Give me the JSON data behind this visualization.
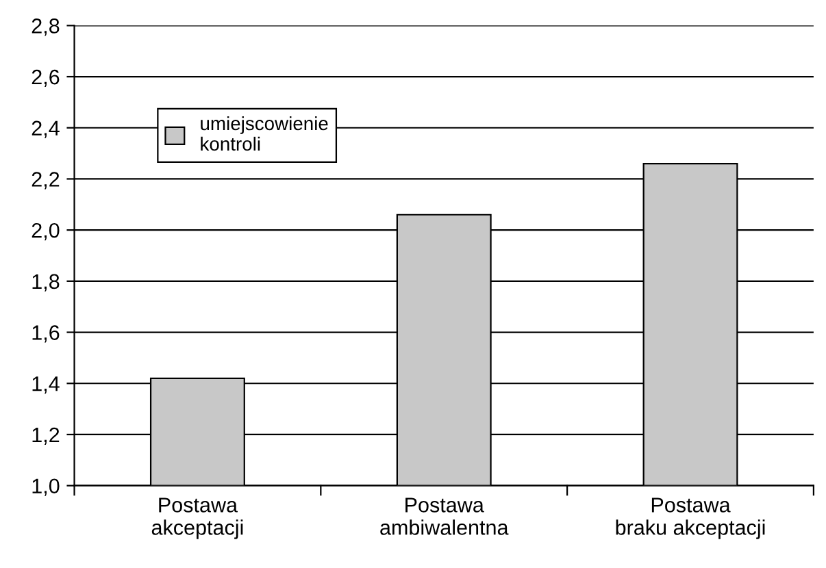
{
  "chart_data": {
    "type": "bar",
    "categories": [
      "Postawa\nakceptacji",
      "Postawa\nambiwalentna",
      "Postawa\nbraku akceptacji"
    ],
    "series": [
      {
        "name": "umiejscowienie\nkontroli",
        "color": "#c8c8c8",
        "values": [
          1.42,
          2.06,
          2.26
        ]
      }
    ],
    "ylim": [
      1.0,
      2.8
    ],
    "yticks": [
      {
        "value": 1.0,
        "label": "1,0"
      },
      {
        "value": 1.2,
        "label": "1,2"
      },
      {
        "value": 1.4,
        "label": "1,4"
      },
      {
        "value": 1.6,
        "label": "1,6"
      },
      {
        "value": 1.8,
        "label": "1,8"
      },
      {
        "value": 2.0,
        "label": "2,0"
      },
      {
        "value": 2.2,
        "label": "2,2"
      },
      {
        "value": 2.4,
        "label": "2,4"
      },
      {
        "value": 2.6,
        "label": "2,6"
      },
      {
        "value": 2.8,
        "label": "2,8"
      }
    ],
    "grid": "y",
    "legend": "top left"
  }
}
